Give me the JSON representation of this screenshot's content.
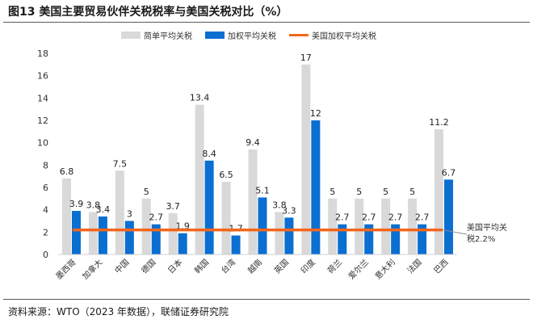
{
  "figure": {
    "title": "图13 美国主要贸易伙伴关税税率与美国关税对比（%）",
    "source": "资料来源：WTO（2023 年数据），联储证券研究院"
  },
  "chart_data": {
    "type": "bar",
    "categories": [
      "墨西哥",
      "加拿大",
      "中国",
      "德国",
      "日本",
      "韩国",
      "台湾",
      "越南",
      "英国",
      "印度",
      "荷兰",
      "爱尔兰",
      "意大利",
      "法国",
      "巴西"
    ],
    "series": [
      {
        "name": "简单平均关税",
        "values": [
          6.8,
          3.8,
          7.5,
          5,
          3.7,
          13.4,
          6.5,
          9.4,
          3.8,
          17,
          5,
          5,
          5,
          5,
          11.2
        ],
        "color": "#d9d9d9"
      },
      {
        "name": "加权平均关税",
        "values": [
          3.9,
          3.4,
          3,
          2.7,
          1.9,
          8.4,
          1.7,
          5.1,
          3.3,
          12,
          2.7,
          2.7,
          2.7,
          2.7,
          6.7
        ],
        "color": "#0a6fd1"
      }
    ],
    "reference_line": {
      "name": "美国加权平均关税",
      "value": 2.2,
      "color": "#f4661b",
      "annotation": [
        "美国平均关",
        "税2.2%"
      ]
    },
    "ylim": [
      0,
      18
    ],
    "yticks": [
      0,
      2,
      4,
      6,
      8,
      10,
      12,
      14,
      16,
      18
    ],
    "xlabel": "",
    "ylabel": "",
    "grid": false,
    "legend": "top"
  }
}
